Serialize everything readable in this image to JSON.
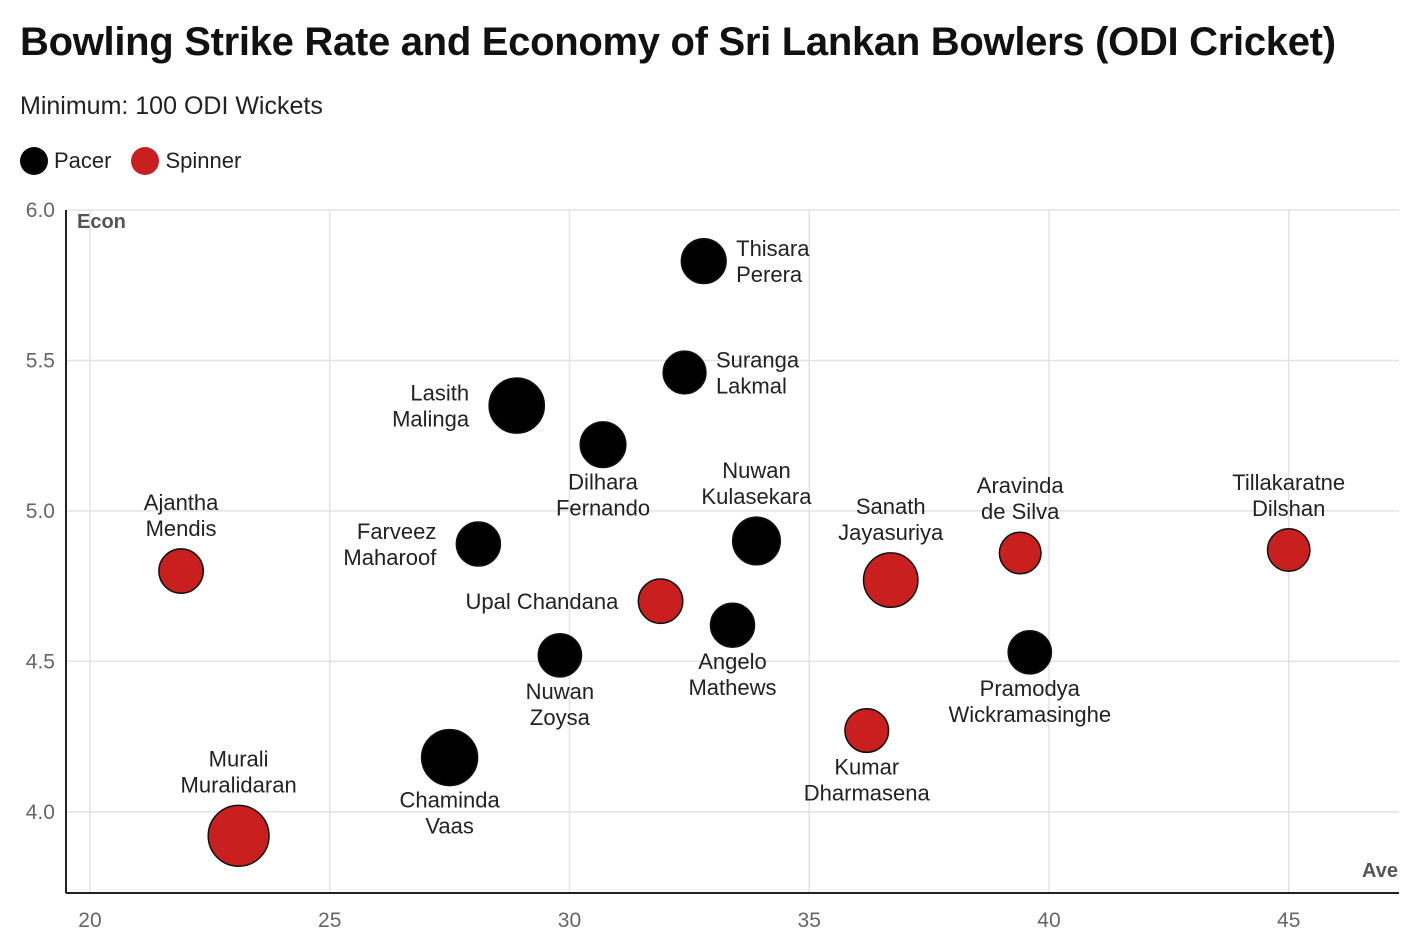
{
  "header": {
    "title": "Bowling Strike Rate and Economy of Sri Lankan Bowlers (ODI Cricket)",
    "subtitle": "Minimum: 100 ODI Wickets"
  },
  "legend": [
    {
      "label": "Pacer",
      "color": "#000000"
    },
    {
      "label": "Spinner",
      "color": "#c91f1f"
    }
  ],
  "chart_data": {
    "type": "scatter",
    "xlabel": "Ave",
    "ylabel": "Econ",
    "xlim": [
      19.5,
      47.3
    ],
    "ylim": [
      3.73,
      6.0
    ],
    "x_ticks": [
      "20",
      "25",
      "30",
      "35",
      "40",
      "45"
    ],
    "y_ticks": [
      "4.0",
      "4.5",
      "5.0",
      "5.5",
      "6.0"
    ],
    "grid": true,
    "legend_position": "top-left",
    "colors": {
      "Pacer": "#000000",
      "Spinner": "#c91f1f"
    },
    "points": [
      {
        "name": "Thisara Perera",
        "lines": [
          "Thisara",
          "Perera"
        ],
        "x": 32.8,
        "y": 5.83,
        "type": "Pacer",
        "size": 0.32,
        "label_pos": "right"
      },
      {
        "name": "Suranga Lakmal",
        "lines": [
          "Suranga",
          "Lakmal"
        ],
        "x": 32.4,
        "y": 5.46,
        "type": "Pacer",
        "size": 0.27,
        "label_pos": "right"
      },
      {
        "name": "Lasith Malinga",
        "lines": [
          "Lasith",
          "Malinga"
        ],
        "x": 28.9,
        "y": 5.35,
        "type": "Pacer",
        "size": 0.58,
        "label_pos": "left"
      },
      {
        "name": "Dilhara Fernando",
        "lines": [
          "Dilhara",
          "Fernando"
        ],
        "x": 30.7,
        "y": 5.22,
        "type": "Pacer",
        "size": 0.34,
        "label_pos": "below"
      },
      {
        "name": "Nuwan Kulasekara",
        "lines": [
          "Nuwan",
          "Kulasekara"
        ],
        "x": 33.9,
        "y": 4.9,
        "type": "Pacer",
        "size": 0.39,
        "label_pos": "above"
      },
      {
        "name": "Farveez Maharoof",
        "lines": [
          "Farveez",
          "Maharoof"
        ],
        "x": 28.1,
        "y": 4.89,
        "type": "Pacer",
        "size": 0.3,
        "label_pos": "left"
      },
      {
        "name": "Angelo Mathews",
        "lines": [
          "Angelo",
          "Mathews"
        ],
        "x": 33.4,
        "y": 4.62,
        "type": "Pacer",
        "size": 0.3,
        "label_pos": "below"
      },
      {
        "name": "Nuwan Zoysa",
        "lines": [
          "Nuwan",
          "Zoysa"
        ],
        "x": 29.8,
        "y": 4.52,
        "type": "Pacer",
        "size": 0.28,
        "label_pos": "below"
      },
      {
        "name": "Chaminda Vaas",
        "lines": [
          "Chaminda",
          "Vaas"
        ],
        "x": 27.5,
        "y": 4.18,
        "type": "Pacer",
        "size": 0.6,
        "label_pos": "below"
      },
      {
        "name": "Pramodya Wickramasinghe",
        "lines": [
          "Pramodya",
          "Wickramasinghe"
        ],
        "x": 39.6,
        "y": 4.53,
        "type": "Pacer",
        "size": 0.28,
        "label_pos": "below"
      },
      {
        "name": "Ajantha Mendis",
        "lines": [
          "Ajantha",
          "Mendis"
        ],
        "x": 21.9,
        "y": 4.8,
        "type": "Spinner",
        "size": 0.31,
        "label_pos": "above"
      },
      {
        "name": "Murali Muralidaran",
        "lines": [
          "Murali",
          "Muralidaran"
        ],
        "x": 23.1,
        "y": 3.92,
        "type": "Spinner",
        "size": 0.72,
        "label_pos": "above"
      },
      {
        "name": "Upal Chandana",
        "lines": [
          "Upal Chandana"
        ],
        "x": 31.9,
        "y": 4.7,
        "type": "Spinner",
        "size": 0.31,
        "label_pos": "left"
      },
      {
        "name": "Sanath Jayasuriya",
        "lines": [
          "Sanath",
          "Jayasuriya"
        ],
        "x": 36.7,
        "y": 4.77,
        "type": "Spinner",
        "size": 0.56,
        "label_pos": "above"
      },
      {
        "name": "Aravinda de Silva",
        "lines": [
          "Aravinda",
          "de Silva"
        ],
        "x": 39.4,
        "y": 4.86,
        "type": "Spinner",
        "size": 0.24,
        "label_pos": "above"
      },
      {
        "name": "Kumar Dharmasena",
        "lines": [
          "Kumar",
          "Dharmasena"
        ],
        "x": 36.2,
        "y": 4.27,
        "type": "Spinner",
        "size": 0.29,
        "label_pos": "below"
      },
      {
        "name": "Tillakaratne Dilshan",
        "lines": [
          "Tillakaratne",
          "Dilshan"
        ],
        "x": 45.0,
        "y": 4.87,
        "type": "Spinner",
        "size": 0.26,
        "label_pos": "above"
      }
    ]
  }
}
